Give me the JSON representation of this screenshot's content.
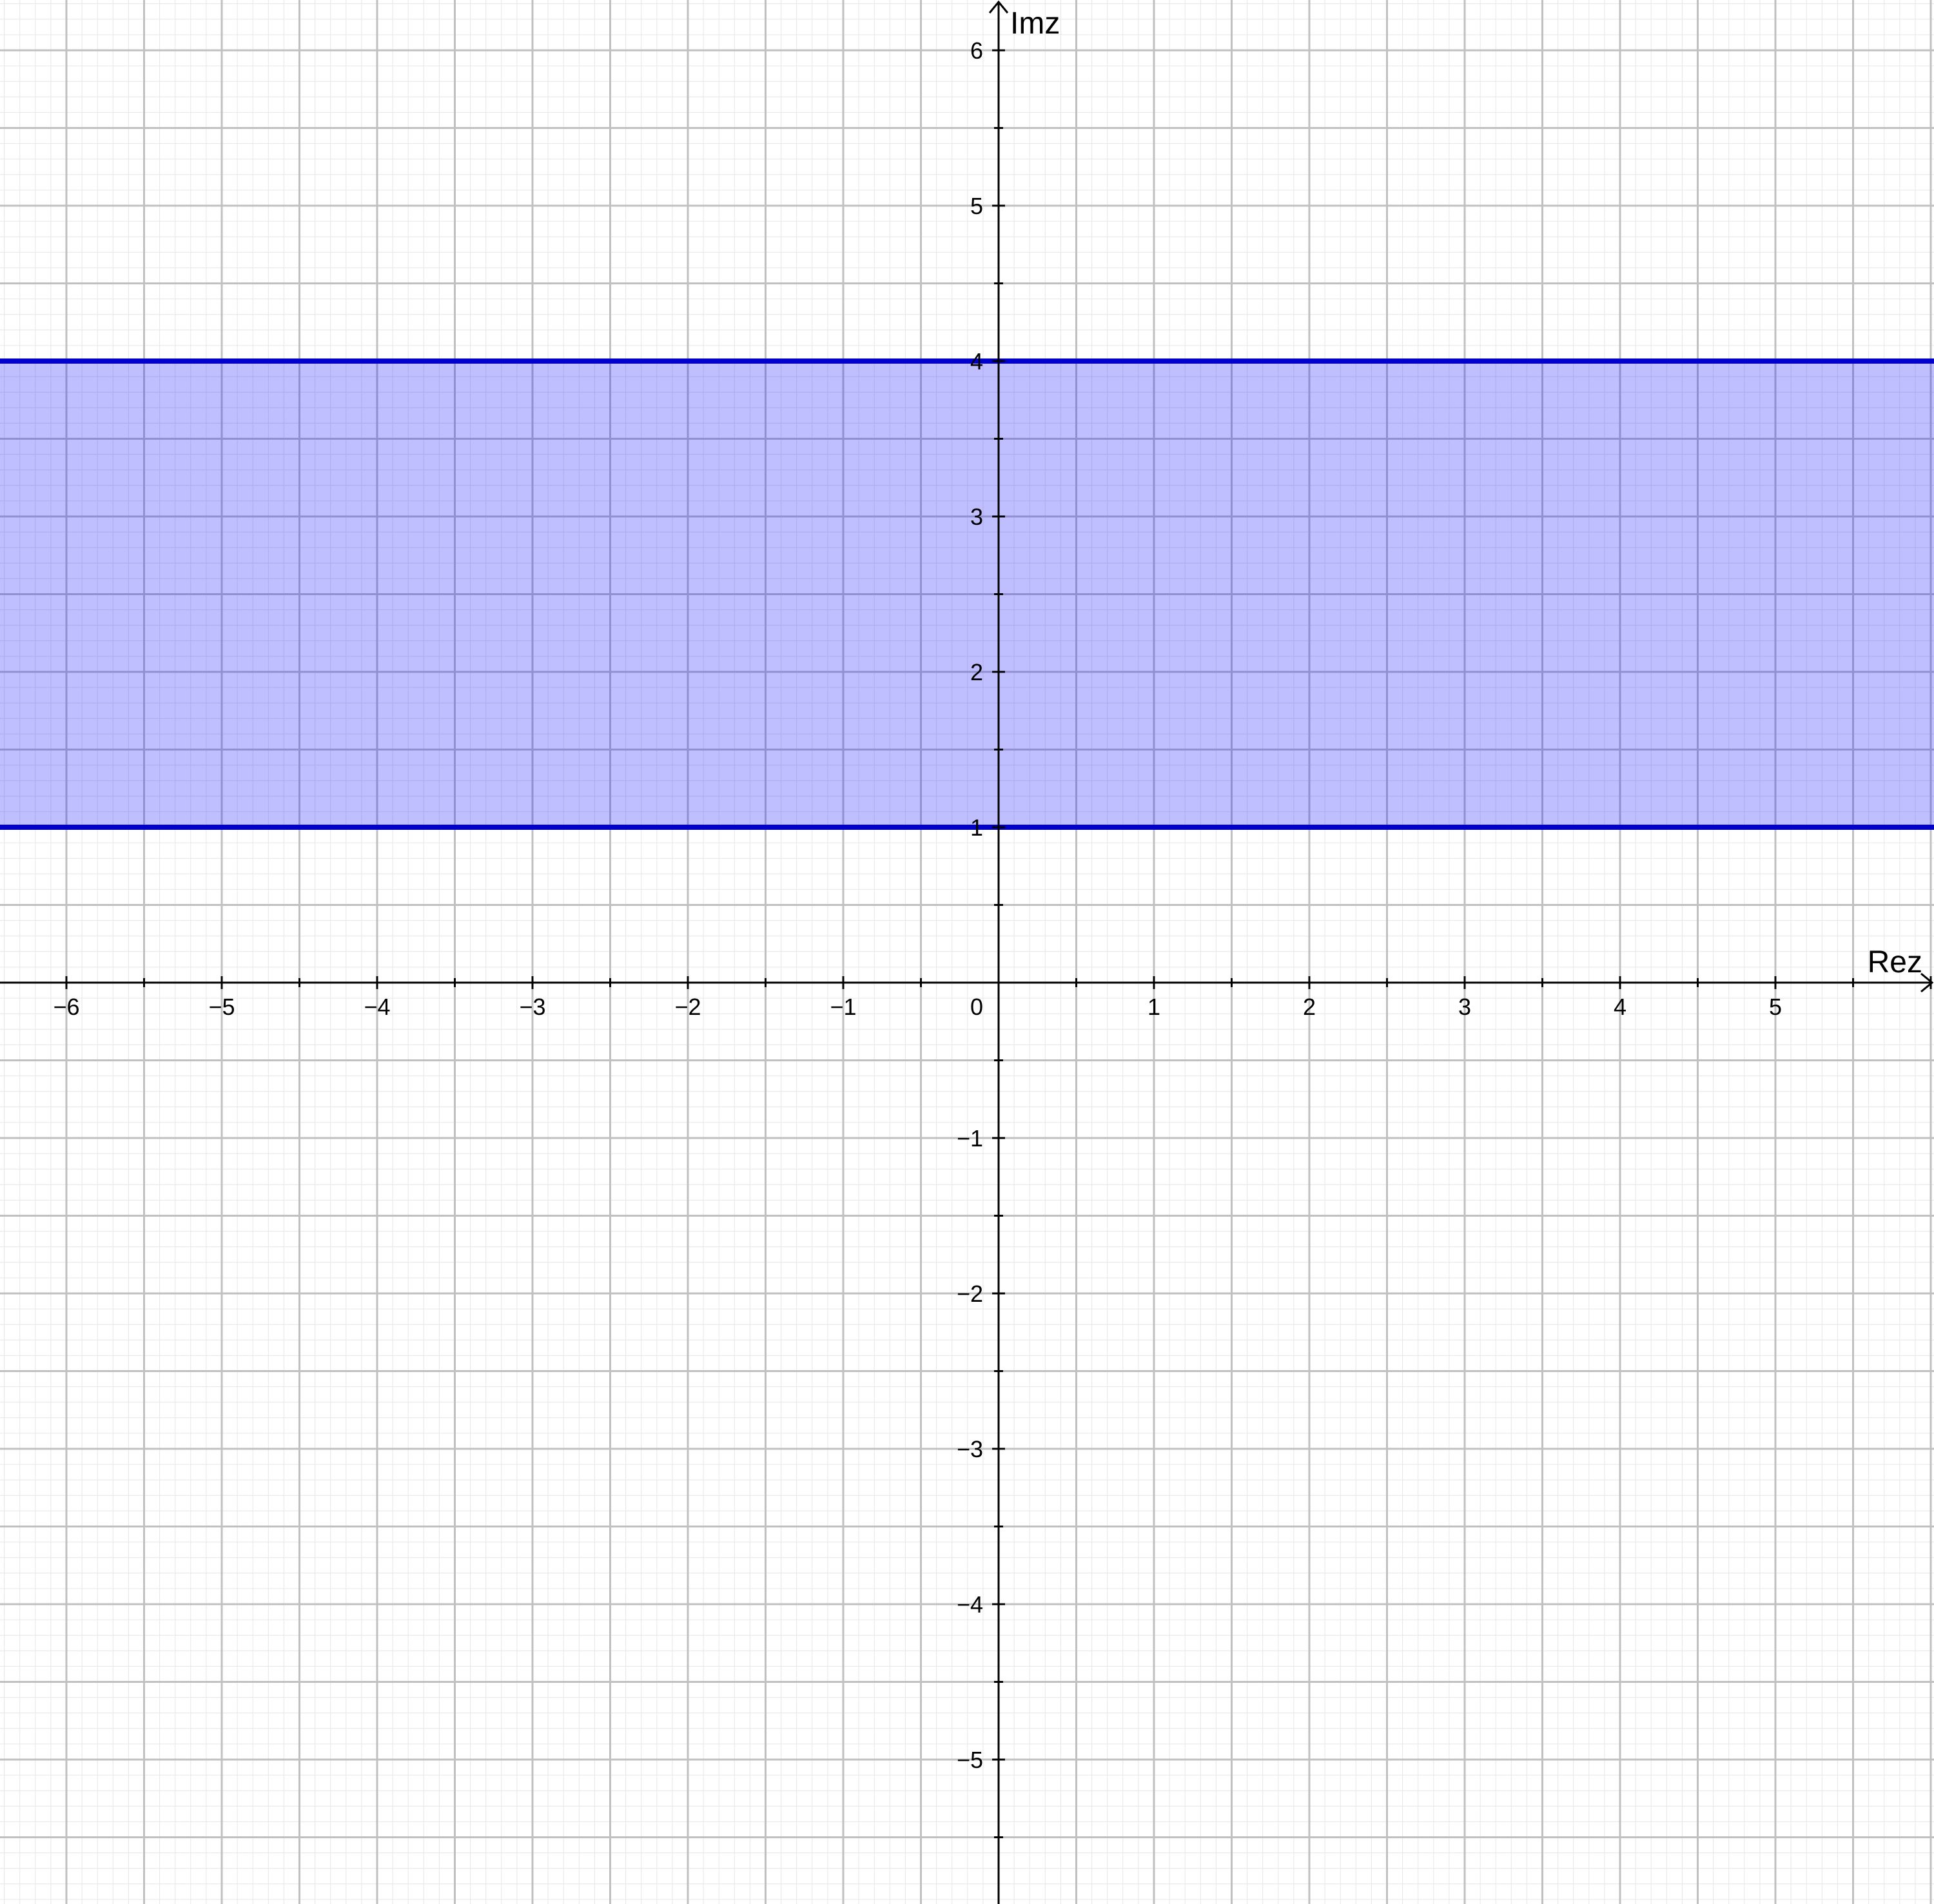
{
  "chart_data": {
    "type": "region",
    "xlabel": "Rez",
    "ylabel": "Imz",
    "xlim": [
      -6.45,
      6.05
    ],
    "ylim": [
      -5.95,
      6.3
    ],
    "grid": true,
    "minor_grid": true,
    "x_ticks": [
      {
        "value": -6,
        "label": "−6"
      },
      {
        "value": -5,
        "label": "−5"
      },
      {
        "value": -4,
        "label": "−4"
      },
      {
        "value": -3,
        "label": "−3"
      },
      {
        "value": -2,
        "label": "−2"
      },
      {
        "value": -1,
        "label": "−1"
      },
      {
        "value": 1,
        "label": "1"
      },
      {
        "value": 2,
        "label": "2"
      },
      {
        "value": 3,
        "label": "3"
      },
      {
        "value": 4,
        "label": "4"
      },
      {
        "value": 5,
        "label": "5"
      }
    ],
    "y_ticks": [
      {
        "value": -5,
        "label": "−5"
      },
      {
        "value": -4,
        "label": "−4"
      },
      {
        "value": -3,
        "label": "−3"
      },
      {
        "value": -2,
        "label": "−2"
      },
      {
        "value": -1,
        "label": "−1"
      },
      {
        "value": 1,
        "label": "1"
      },
      {
        "value": 2,
        "label": "2"
      },
      {
        "value": 3,
        "label": "3"
      },
      {
        "value": 4,
        "label": "4"
      },
      {
        "value": 5,
        "label": "5"
      },
      {
        "value": 6,
        "label": "6"
      }
    ],
    "origin_label": "0",
    "region": {
      "kind": "horizontal-strip",
      "y_min": 1,
      "y_max": 4,
      "fill_color": "#0000ff",
      "fill_opacity": 0.25,
      "boundary_color": "#0000cc"
    },
    "boundary_lines": [
      {
        "y": 1
      },
      {
        "y": 4
      }
    ],
    "colors": {
      "major_grid": "#c0c0c0",
      "minor_grid": "#e6e6e6",
      "axis": "#000000"
    }
  }
}
